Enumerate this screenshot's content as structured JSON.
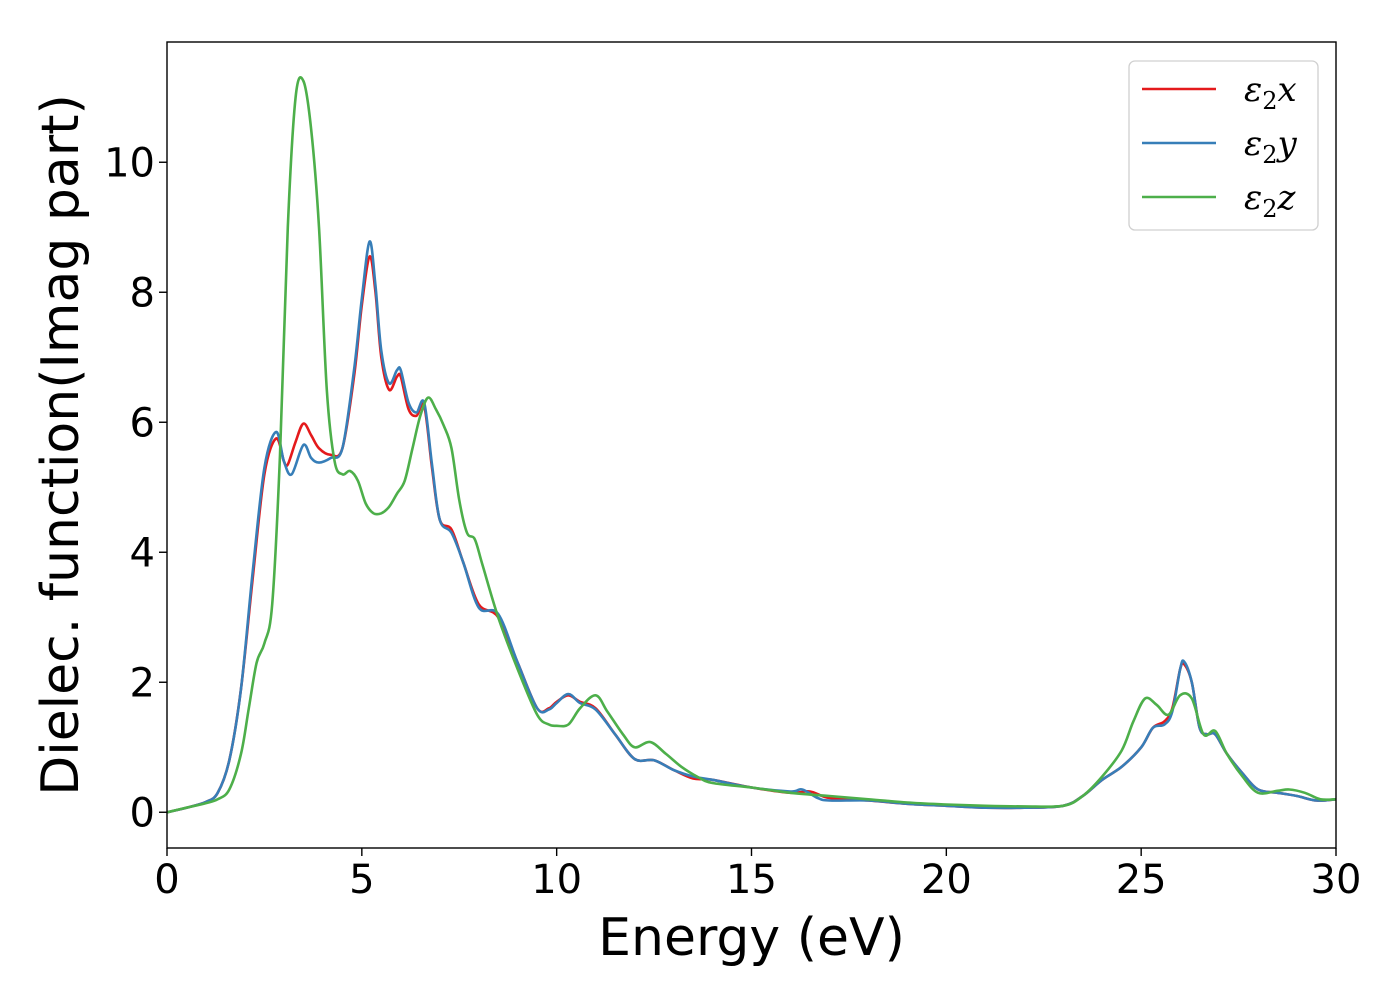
{
  "chart_data": {
    "type": "line",
    "xlabel": "Energy (eV)",
    "ylabel": "Dielec. function(Imag part)",
    "xlim": [
      0,
      30
    ],
    "ylim": [
      -0.55,
      11.85
    ],
    "xticks": [
      0,
      5,
      10,
      15,
      20,
      25,
      30
    ],
    "yticks": [
      0,
      2,
      4,
      6,
      8,
      10
    ],
    "grid": false,
    "legend_position": "top-right",
    "series": [
      {
        "name": "ε₂x",
        "legend_base": "ε",
        "legend_sub": "2",
        "legend_suffix": "x",
        "color": "#e41a1c",
        "x": [
          0,
          0.5,
          1,
          1.3,
          1.6,
          1.9,
          2.2,
          2.5,
          2.8,
          3.0,
          3.1,
          3.3,
          3.5,
          3.7,
          3.9,
          4.2,
          4.5,
          4.8,
          5.0,
          5.2,
          5.35,
          5.5,
          5.7,
          5.9,
          6.0,
          6.2,
          6.4,
          6.6,
          6.8,
          7.0,
          7.3,
          7.6,
          8.0,
          8.5,
          9.0,
          9.5,
          9.8,
          10.0,
          10.3,
          10.6,
          11.0,
          11.5,
          12.0,
          12.5,
          13.0,
          13.5,
          14.0,
          15.0,
          16.0,
          16.5,
          17.0,
          18.0,
          19.0,
          20.0,
          21.0,
          22.0,
          23.0,
          23.5,
          24.0,
          24.5,
          25.0,
          25.3,
          25.6,
          25.8,
          26.0,
          26.1,
          26.3,
          26.5,
          26.7,
          26.9,
          27.2,
          27.6,
          28.0,
          28.5,
          29.0,
          29.5,
          30.0
        ],
        "y": [
          0,
          0.07,
          0.16,
          0.3,
          0.8,
          1.9,
          3.6,
          5.2,
          5.75,
          5.4,
          5.35,
          5.7,
          5.98,
          5.8,
          5.6,
          5.5,
          5.6,
          6.7,
          7.8,
          8.55,
          8.0,
          7.0,
          6.5,
          6.7,
          6.7,
          6.2,
          6.1,
          6.25,
          5.3,
          4.5,
          4.35,
          3.85,
          3.2,
          3.0,
          2.3,
          1.6,
          1.6,
          1.7,
          1.8,
          1.7,
          1.6,
          1.2,
          0.82,
          0.8,
          0.65,
          0.52,
          0.5,
          0.38,
          0.3,
          0.32,
          0.22,
          0.18,
          0.13,
          0.1,
          0.07,
          0.07,
          0.1,
          0.25,
          0.5,
          0.7,
          1.0,
          1.3,
          1.4,
          1.6,
          2.2,
          2.28,
          2.0,
          1.3,
          1.2,
          1.2,
          0.9,
          0.6,
          0.35,
          0.3,
          0.25,
          0.18,
          0.2
        ]
      },
      {
        "name": "ε₂y",
        "legend_base": "ε",
        "legend_sub": "2",
        "legend_suffix": "y",
        "color": "#377eb8",
        "x": [
          0,
          0.5,
          1,
          1.3,
          1.6,
          1.9,
          2.2,
          2.5,
          2.8,
          3.0,
          3.2,
          3.5,
          3.7,
          3.9,
          4.2,
          4.5,
          4.8,
          5.0,
          5.2,
          5.35,
          5.5,
          5.7,
          5.9,
          6.0,
          6.2,
          6.4,
          6.6,
          6.8,
          7.0,
          7.3,
          7.6,
          8.0,
          8.5,
          9.0,
          9.5,
          9.8,
          10.0,
          10.3,
          10.6,
          11.0,
          11.5,
          12.0,
          12.5,
          13.0,
          13.5,
          14.0,
          15.0,
          16.0,
          16.3,
          16.7,
          17.0,
          18.0,
          19.0,
          20.0,
          21.0,
          22.0,
          23.0,
          23.5,
          24.0,
          24.5,
          25.0,
          25.3,
          25.6,
          25.8,
          26.0,
          26.1,
          26.3,
          26.5,
          26.7,
          26.9,
          27.2,
          27.6,
          28.0,
          28.5,
          29.0,
          29.5,
          30.0
        ],
        "y": [
          0,
          0.07,
          0.16,
          0.3,
          0.8,
          1.9,
          3.7,
          5.3,
          5.85,
          5.4,
          5.2,
          5.65,
          5.45,
          5.38,
          5.45,
          5.6,
          6.8,
          7.9,
          8.78,
          8.1,
          7.1,
          6.6,
          6.8,
          6.8,
          6.3,
          6.15,
          6.3,
          5.35,
          4.5,
          4.3,
          3.85,
          3.15,
          3.05,
          2.3,
          1.6,
          1.58,
          1.68,
          1.82,
          1.68,
          1.58,
          1.2,
          0.82,
          0.8,
          0.65,
          0.55,
          0.5,
          0.38,
          0.32,
          0.35,
          0.22,
          0.18,
          0.18,
          0.13,
          0.1,
          0.07,
          0.07,
          0.1,
          0.25,
          0.5,
          0.7,
          1.0,
          1.3,
          1.35,
          1.55,
          2.2,
          2.32,
          2.0,
          1.3,
          1.2,
          1.2,
          0.9,
          0.6,
          0.35,
          0.3,
          0.25,
          0.18,
          0.2
        ]
      },
      {
        "name": "ε₂z",
        "legend_base": "ε",
        "legend_sub": "2",
        "legend_suffix": "z",
        "color": "#4daf4a",
        "x": [
          0,
          0.5,
          1,
          1.3,
          1.6,
          1.9,
          2.1,
          2.3,
          2.5,
          2.7,
          2.9,
          3.1,
          3.3,
          3.5,
          3.7,
          3.9,
          4.1,
          4.3,
          4.5,
          4.7,
          4.9,
          5.1,
          5.3,
          5.5,
          5.7,
          5.9,
          6.1,
          6.3,
          6.5,
          6.7,
          6.9,
          7.1,
          7.3,
          7.5,
          7.7,
          7.9,
          8.1,
          8.5,
          9.0,
          9.5,
          9.8,
          10.0,
          10.3,
          10.6,
          11.0,
          11.3,
          11.7,
          12.0,
          12.4,
          12.8,
          13.2,
          13.6,
          14.0,
          15.0,
          16.0,
          17.0,
          18.0,
          19.0,
          20.0,
          21.0,
          22.0,
          23.0,
          23.5,
          24.0,
          24.5,
          24.8,
          25.1,
          25.4,
          25.7,
          26.0,
          26.3,
          26.6,
          26.9,
          27.2,
          27.6,
          28.0,
          28.5,
          28.8,
          29.2,
          29.6,
          30.0
        ],
        "y": [
          0,
          0.07,
          0.14,
          0.2,
          0.35,
          0.9,
          1.6,
          2.3,
          2.6,
          3.2,
          5.5,
          9.0,
          11.0,
          11.25,
          10.5,
          9.0,
          6.5,
          5.4,
          5.2,
          5.25,
          5.1,
          4.75,
          4.6,
          4.6,
          4.7,
          4.9,
          5.1,
          5.6,
          6.1,
          6.38,
          6.2,
          5.95,
          5.6,
          4.8,
          4.3,
          4.2,
          3.8,
          3.0,
          2.2,
          1.5,
          1.35,
          1.33,
          1.35,
          1.6,
          1.8,
          1.55,
          1.2,
          1.0,
          1.08,
          0.9,
          0.7,
          0.55,
          0.45,
          0.38,
          0.3,
          0.25,
          0.2,
          0.15,
          0.12,
          0.1,
          0.09,
          0.1,
          0.25,
          0.55,
          0.95,
          1.4,
          1.75,
          1.65,
          1.5,
          1.8,
          1.75,
          1.2,
          1.25,
          0.9,
          0.55,
          0.3,
          0.33,
          0.35,
          0.3,
          0.2,
          0.2
        ]
      }
    ]
  }
}
